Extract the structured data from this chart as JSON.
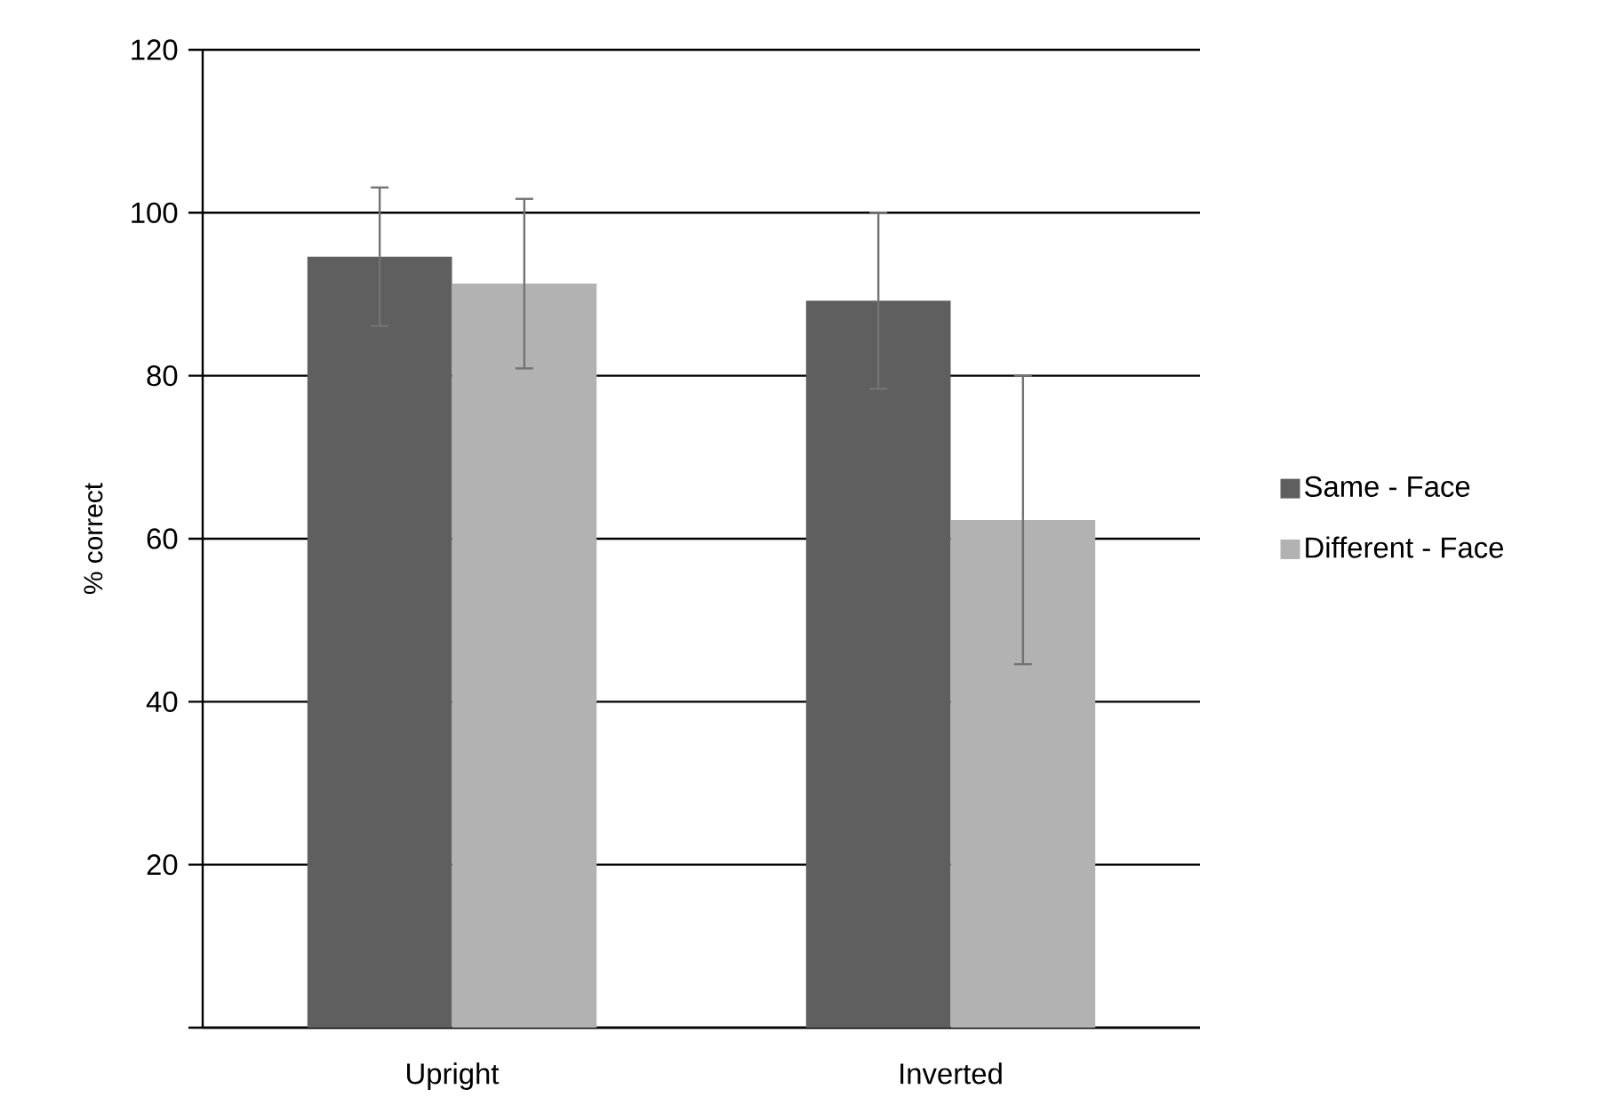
{
  "chart_data": {
    "type": "bar",
    "ylabel": "% correct",
    "categories": [
      "Upright",
      "Inverted"
    ],
    "series": [
      {
        "name": "Same - Face",
        "color": "#5f5f5f",
        "values": [
          94.6,
          89.2
        ],
        "errors": [
          8.5,
          10.8
        ]
      },
      {
        "name": "Different - Face",
        "color": "#b2b2b2",
        "values": [
          91.3,
          62.3
        ],
        "errors": [
          10.4,
          17.7
        ]
      }
    ],
    "ylim": [
      0,
      120
    ],
    "yticks": [
      {
        "value": 0,
        "label": null
      },
      20,
      40,
      60,
      80,
      100,
      120
    ],
    "grid": "y",
    "legend": "right"
  }
}
